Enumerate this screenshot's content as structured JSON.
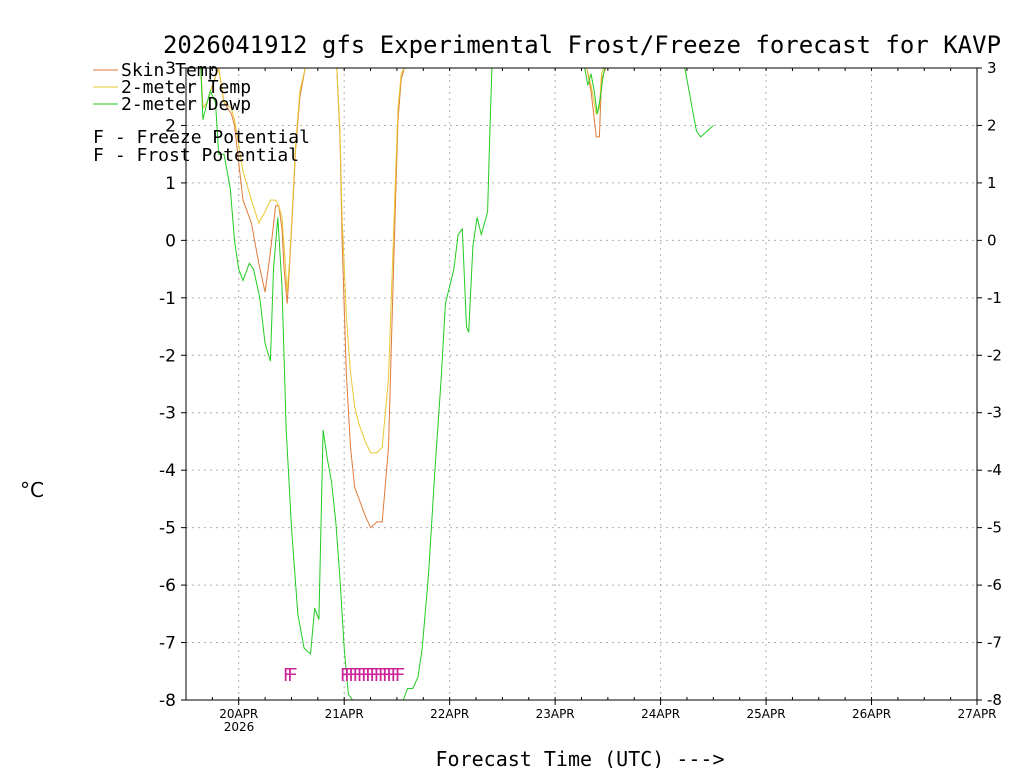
{
  "chart_data": {
    "type": "line",
    "title": "2026041912 gfs Experimental Frost/Freeze forecast for KAVP",
    "ylabel": "°C",
    "xlabel": "Forecast Time (UTC) --->",
    "ylim": [
      -8,
      3
    ],
    "xlim": [
      -0.5,
      7
    ],
    "yticks": [
      "-8",
      "-7",
      "-6",
      "-5",
      "-4",
      "-3",
      "-2",
      "-1",
      "0",
      "1",
      "2",
      "3"
    ],
    "right_yticks": [
      "-8",
      "-7",
      "-6",
      "-5",
      "-4",
      "-3",
      "-2",
      "-1",
      "0",
      "1",
      "2",
      "3"
    ],
    "xticks": [
      {
        "label": "20APR",
        "x": 0
      },
      {
        "label": "21APR",
        "x": 1
      },
      {
        "label": "22APR",
        "x": 2
      },
      {
        "label": "23APR",
        "x": 3
      },
      {
        "label": "24APR",
        "x": 4
      },
      {
        "label": "25APR",
        "x": 5
      },
      {
        "label": "26APR",
        "x": 6
      },
      {
        "label": "27APR",
        "x": 7
      }
    ],
    "year_label": "2026",
    "legend": {
      "placement": "top-left",
      "entries": [
        {
          "label": "Skin Temp",
          "color": "#e07b39"
        },
        {
          "label": "2-meter Temp",
          "color": "#e8c832"
        },
        {
          "label": "2-meter Dewp",
          "color": "#22cc22"
        }
      ],
      "markers": [
        {
          "symbol": "F",
          "text": " - Freeze Potential",
          "color": "#cc2299"
        },
        {
          "symbol": "F",
          "text": " - Frost Potential",
          "color": "#4455dd"
        }
      ]
    },
    "series": [
      {
        "name": "Skin Temp",
        "color": "#e07b39",
        "segments": [
          {
            "x": [
              -0.36,
              -0.34,
              -0.3,
              -0.25,
              -0.19,
              -0.14,
              -0.07,
              -0.04,
              0.04,
              0.12,
              0.19,
              0.25,
              0.3,
              0.35,
              0.38,
              0.41,
              0.43,
              0.46,
              0.48,
              0.51,
              0.54,
              0.58,
              0.63,
              0.68
            ],
            "y": [
              3.0,
              2.3,
              2.4,
              2.7,
              3.0,
              2.4,
              2.2,
              2.0,
              0.7,
              0.3,
              -0.4,
              -0.9,
              -0.2,
              0.6,
              0.6,
              0.2,
              -0.5,
              -1.1,
              -0.5,
              0.5,
              1.6,
              2.5,
              3.0,
              3.0
            ]
          },
          {
            "x": [
              0.93,
              0.96,
              0.98,
              1.02,
              1.06,
              1.1,
              1.14,
              1.2,
              1.25,
              1.31,
              1.36,
              1.42,
              1.46,
              1.49,
              1.51,
              1.54,
              1.57
            ],
            "y": [
              3.0,
              1.8,
              0.0,
              -2.3,
              -3.6,
              -4.3,
              -4.5,
              -4.8,
              -5.0,
              -4.9,
              -4.9,
              -3.6,
              -1.0,
              0.9,
              2.1,
              2.8,
              3.0
            ]
          },
          {
            "x": [
              3.3,
              3.34,
              3.39,
              3.42,
              3.44,
              3.46,
              3.48
            ],
            "y": [
              3.0,
              2.6,
              1.8,
              1.8,
              2.8,
              2.9,
              3.0
            ]
          }
        ]
      },
      {
        "name": "2-meter Temp",
        "color": "#e8c832",
        "segments": [
          {
            "x": [
              -0.36,
              -0.34,
              -0.3,
              -0.25,
              -0.19,
              -0.14,
              -0.07,
              -0.04,
              0.04,
              0.12,
              0.19,
              0.25,
              0.3,
              0.35,
              0.38,
              0.41,
              0.43,
              0.46,
              0.48,
              0.51,
              0.54,
              0.58,
              0.63,
              0.68
            ],
            "y": [
              3.0,
              2.3,
              2.4,
              2.7,
              3.0,
              2.4,
              2.3,
              2.1,
              1.2,
              0.7,
              0.3,
              0.5,
              0.7,
              0.7,
              0.6,
              0.4,
              -0.1,
              -0.9,
              -0.4,
              0.6,
              1.7,
              2.6,
              3.0,
              3.0
            ]
          },
          {
            "x": [
              0.93,
              0.96,
              0.98,
              1.02,
              1.06,
              1.1,
              1.14,
              1.2,
              1.25,
              1.31,
              1.36,
              1.42,
              1.46,
              1.49,
              1.51,
              1.54,
              1.57
            ],
            "y": [
              3.0,
              1.9,
              0.4,
              -1.3,
              -2.3,
              -2.9,
              -3.2,
              -3.5,
              -3.7,
              -3.7,
              -3.6,
              -2.4,
              -0.3,
              1.3,
              2.3,
              2.9,
              3.0
            ]
          },
          {
            "x": [
              3.3,
              3.34,
              3.39,
              3.42,
              3.44,
              3.46,
              3.48
            ],
            "y": [
              3.0,
              2.7,
              2.2,
              2.3,
              2.9,
              3.0,
              3.0
            ]
          }
        ]
      },
      {
        "name": "2-meter Dewp",
        "color": "#22cc22",
        "segments": [
          {
            "x": [
              -0.36,
              -0.34,
              -0.3,
              -0.27,
              -0.22,
              -0.19,
              -0.14,
              -0.08,
              -0.04,
              0.0,
              0.04,
              0.1,
              0.14,
              0.2,
              0.25,
              0.3,
              0.33,
              0.37,
              0.41,
              0.45,
              0.5,
              0.56,
              0.62,
              0.68,
              0.72,
              0.76,
              0.8,
              0.84,
              0.88,
              0.92,
              0.96,
              1.0,
              1.04,
              1.08,
              1.12,
              1.16,
              1.19
            ],
            "y": [
              3.0,
              2.1,
              2.4,
              2.6,
              2.4,
              1.5,
              1.5,
              0.9,
              0.0,
              -0.5,
              -0.7,
              -0.4,
              -0.5,
              -1.0,
              -1.8,
              -2.1,
              -0.5,
              0.4,
              -0.8,
              -3.3,
              -5.0,
              -6.5,
              -7.1,
              -7.2,
              -6.4,
              -6.6,
              -3.3,
              -3.8,
              -4.2,
              -4.9,
              -5.9,
              -7.1,
              -7.9,
              -8.0,
              -8.0,
              -8.0,
              -8.0
            ]
          },
          {
            "x": [
              1.56,
              1.6,
              1.65,
              1.7,
              1.74,
              1.8,
              1.86,
              1.92,
              1.96,
              2.0,
              2.04,
              2.08,
              2.12,
              2.16,
              2.18,
              2.22,
              2.26,
              2.3,
              2.33,
              2.36,
              2.38,
              2.4
            ],
            "y": [
              -8.0,
              -7.8,
              -7.8,
              -7.6,
              -7.1,
              -5.8,
              -4.0,
              -2.4,
              -1.1,
              -0.8,
              -0.5,
              0.1,
              0.2,
              -1.5,
              -1.6,
              -0.1,
              0.4,
              0.1,
              0.3,
              0.5,
              1.8,
              3.0
            ]
          },
          {
            "x": [
              3.28,
              3.31,
              3.34,
              3.37,
              3.4,
              3.43,
              3.45,
              3.47
            ],
            "y": [
              3.0,
              2.7,
              2.9,
              2.6,
              2.2,
              2.5,
              2.8,
              3.0
            ]
          },
          {
            "x": [
              4.23,
              4.26,
              4.3,
              4.34,
              4.38,
              4.44,
              4.5
            ],
            "y": [
              3.0,
              2.7,
              2.3,
              1.9,
              1.8,
              1.9,
              2.0
            ]
          }
        ]
      }
    ],
    "markers": {
      "freeze_potential": {
        "symbol": "F",
        "color": "#cc2299",
        "y": -7.55,
        "x": [
          0.42,
          0.46,
          0.96,
          1.0,
          1.04,
          1.08,
          1.12,
          1.16,
          1.2,
          1.24,
          1.28,
          1.32,
          1.36,
          1.4,
          1.44,
          1.48
        ]
      }
    }
  },
  "colors": {
    "axis": "#000000",
    "grid": "#b0b0b0",
    "background": "#ffffff"
  }
}
